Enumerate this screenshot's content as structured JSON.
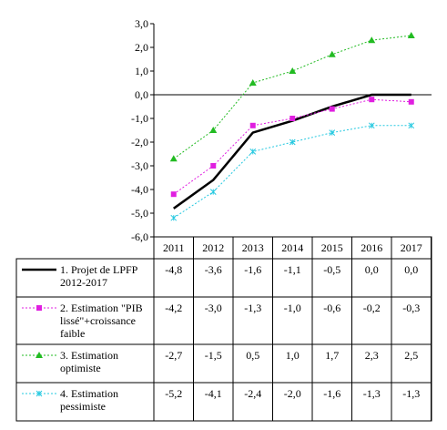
{
  "chart_data": {
    "type": "line",
    "categories": [
      "2011",
      "2012",
      "2013",
      "2014",
      "2015",
      "2016",
      "2017"
    ],
    "ylim": [
      -6,
      3
    ],
    "yticks": [
      "3,0",
      "2,0",
      "1,0",
      "0,0",
      "-1,0",
      "-2,0",
      "-3,0",
      "-4,0",
      "-5,0",
      "-6,0"
    ],
    "grid": false,
    "legend_placement": "data table below plot",
    "series": [
      {
        "name_lines": [
          "1. Projet de LPFP",
          "2012-2017"
        ],
        "values": [
          -4.8,
          -3.6,
          -1.6,
          -1.1,
          -0.5,
          0.0,
          0.0
        ],
        "labels": [
          "-4,8",
          "-3,6",
          "-1,6",
          "-1,1",
          "-0,5",
          "0,0",
          "0,0"
        ],
        "color": "#000000",
        "line_style": "solid",
        "marker": "none"
      },
      {
        "name_lines": [
          "2. Estimation \"PIB",
          "lissé\"+croissance",
          "faible"
        ],
        "values": [
          -4.2,
          -3.0,
          -1.3,
          -1.0,
          -0.6,
          -0.2,
          -0.3
        ],
        "labels": [
          "-4,2",
          "-3,0",
          "-1,3",
          "-1,0",
          "-0,6",
          "-0,2",
          "-0,3"
        ],
        "color": "#e01fe0",
        "line_style": "dotted",
        "marker": "square"
      },
      {
        "name_lines": [
          "3. Estimation",
          "optimiste"
        ],
        "values": [
          -2.7,
          -1.5,
          0.5,
          1.0,
          1.7,
          2.3,
          2.5
        ],
        "labels": [
          "-2,7",
          "-1,5",
          "0,5",
          "1,0",
          "1,7",
          "2,3",
          "2,5"
        ],
        "color": "#22bb22",
        "line_style": "dotted",
        "marker": "triangle"
      },
      {
        "name_lines": [
          "4. Estimation",
          "pessimiste"
        ],
        "values": [
          -5.2,
          -4.1,
          -2.4,
          -2.0,
          -1.6,
          -1.3,
          -1.3
        ],
        "labels": [
          "-5,2",
          "-4,1",
          "-2,4",
          "-2,0",
          "-1,6",
          "-1,3",
          "-1,3"
        ],
        "color": "#22c8e0",
        "line_style": "dotted",
        "marker": "x"
      }
    ]
  }
}
